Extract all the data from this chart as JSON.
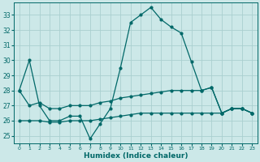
{
  "xlabel": "Humidex (Indice chaleur)",
  "bg_color": "#cce8e8",
  "grid_color": "#aacfcf",
  "line_color": "#006868",
  "main_line": [
    28.0,
    30.0,
    27.0,
    26.0,
    26.0,
    26.3,
    26.3,
    24.8,
    25.8,
    26.8,
    29.5,
    32.5,
    33.0,
    33.5,
    32.7,
    32.2,
    31.8,
    29.9,
    28.0,
    28.2,
    26.5,
    26.8,
    26.8,
    26.5
  ],
  "flat_line1": [
    28.0,
    27.0,
    27.2,
    26.8,
    26.8,
    27.0,
    27.0,
    27.0,
    27.2,
    27.3,
    27.5,
    27.6,
    27.7,
    27.8,
    27.9,
    28.0,
    28.0,
    28.0,
    28.0,
    28.2,
    26.5,
    26.8,
    26.8,
    26.5
  ],
  "flat_line2": [
    26.0,
    26.0,
    26.0,
    25.9,
    25.9,
    26.0,
    26.0,
    26.0,
    26.1,
    26.2,
    26.3,
    26.4,
    26.5,
    26.5,
    26.5,
    26.5,
    26.5,
    26.5,
    26.5,
    26.5,
    26.5,
    26.8,
    26.8,
    26.5
  ],
  "xlim": [
    -0.5,
    23.5
  ],
  "ylim": [
    24.5,
    33.8
  ],
  "yticks": [
    25,
    26,
    27,
    28,
    29,
    30,
    31,
    32,
    33
  ],
  "xticks": [
    0,
    1,
    2,
    3,
    4,
    5,
    6,
    7,
    8,
    9,
    10,
    11,
    12,
    13,
    14,
    15,
    16,
    17,
    18,
    19,
    20,
    21,
    22,
    23
  ]
}
